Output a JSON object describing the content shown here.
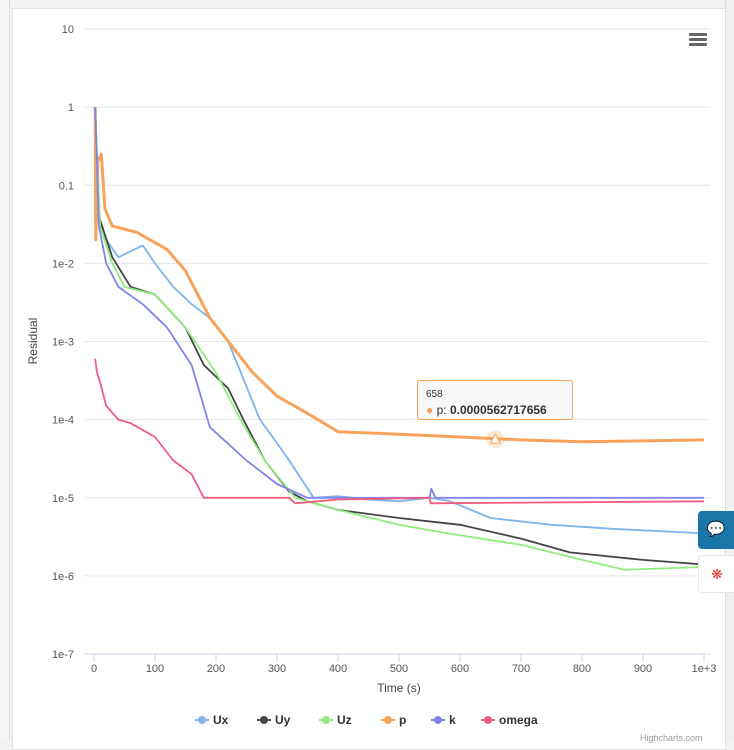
{
  "chart_data": {
    "type": "line",
    "xlabel": "Time (s)",
    "ylabel": "Residual",
    "xlim": [
      0,
      1000
    ],
    "ylim": [
      1e-07,
      10
    ],
    "yscale": "log",
    "x_ticks": [
      "0",
      "100",
      "200",
      "300",
      "400",
      "500",
      "600",
      "700",
      "800",
      "900",
      "1e+3"
    ],
    "y_ticks": [
      "10",
      "1",
      "0.1",
      "1e-2",
      "1e-3",
      "1e-4",
      "1e-5",
      "1e-6",
      "1e-7"
    ],
    "legend_placement": "bottom",
    "series": [
      {
        "name": "Ux",
        "color": "#7cb5ec",
        "marker": "circle",
        "points": [
          [
            2,
            1
          ],
          [
            5,
            0.04
          ],
          [
            20,
            0.02
          ],
          [
            40,
            0.012
          ],
          [
            80,
            0.017
          ],
          [
            100,
            0.01
          ],
          [
            130,
            0.005
          ],
          [
            160,
            0.003
          ],
          [
            190,
            0.002
          ],
          [
            220,
            0.001
          ],
          [
            272,
            0.0001
          ],
          [
            300,
            5e-05
          ],
          [
            320,
            3e-05
          ],
          [
            360,
            1e-05
          ],
          [
            400,
            1.05e-05
          ],
          [
            450,
            9.5e-06
          ],
          [
            500,
            9e-06
          ],
          [
            550,
            1e-05
          ],
          [
            580,
            9.2e-06
          ],
          [
            600,
            8e-06
          ],
          [
            650,
            5.5e-06
          ],
          [
            750,
            4.5e-06
          ],
          [
            850,
            4e-06
          ],
          [
            1000,
            3.5e-06
          ]
        ]
      },
      {
        "name": "Uy",
        "color": "#434348",
        "marker": "diamond",
        "points": [
          [
            2,
            1
          ],
          [
            8,
            0.04
          ],
          [
            30,
            0.012
          ],
          [
            60,
            0.005
          ],
          [
            100,
            0.004
          ],
          [
            150,
            0.0015
          ],
          [
            180,
            0.0005
          ],
          [
            220,
            0.00025
          ],
          [
            245,
            0.0001
          ],
          [
            280,
            3e-05
          ],
          [
            320,
            1.2e-05
          ],
          [
            350,
            9e-06
          ],
          [
            400,
            7e-06
          ],
          [
            500,
            5.5e-06
          ],
          [
            600,
            4.5e-06
          ],
          [
            700,
            3e-06
          ],
          [
            780,
            2e-06
          ],
          [
            900,
            1.6e-06
          ],
          [
            1000,
            1.4e-06
          ]
        ]
      },
      {
        "name": "Uz",
        "color": "#90ed7d",
        "marker": "square",
        "points": [
          [
            2,
            1
          ],
          [
            10,
            0.03
          ],
          [
            30,
            0.01
          ],
          [
            50,
            0.005
          ],
          [
            100,
            0.004
          ],
          [
            150,
            0.0015
          ],
          [
            200,
            0.0004
          ],
          [
            240,
            0.0001
          ],
          [
            280,
            3e-05
          ],
          [
            330,
            1e-05
          ],
          [
            400,
            7e-06
          ],
          [
            500,
            4.5e-06
          ],
          [
            580,
            3.5e-06
          ],
          [
            700,
            2.5e-06
          ],
          [
            800,
            1.6e-06
          ],
          [
            870,
            1.2e-06
          ],
          [
            1000,
            1.3e-06
          ]
        ]
      },
      {
        "name": "p",
        "color": "#f7a35c",
        "marker": "triangle",
        "points": [
          [
            2,
            1
          ],
          [
            3,
            0.02
          ],
          [
            6,
            0.2
          ],
          [
            12,
            0.25
          ],
          [
            18,
            0.05
          ],
          [
            30,
            0.03
          ],
          [
            70,
            0.025
          ],
          [
            120,
            0.015
          ],
          [
            150,
            0.008
          ],
          [
            190,
            0.002
          ],
          [
            230,
            0.0008
          ],
          [
            260,
            0.0004
          ],
          [
            300,
            0.0002
          ],
          [
            350,
            0.00012
          ],
          [
            400,
            7e-05
          ],
          [
            500,
            6.5e-05
          ],
          [
            600,
            6e-05
          ],
          [
            700,
            5.5e-05
          ],
          [
            800,
            5.2e-05
          ],
          [
            1000,
            5.5e-05
          ]
        ]
      },
      {
        "name": "k",
        "color": "#8085e9",
        "marker": "triangle-down",
        "points": [
          [
            2,
            1
          ],
          [
            8,
            0.03
          ],
          [
            20,
            0.01
          ],
          [
            40,
            0.005
          ],
          [
            80,
            0.003
          ],
          [
            120,
            0.0015
          ],
          [
            160,
            0.0005
          ],
          [
            190,
            8e-05
          ],
          [
            250,
            3e-05
          ],
          [
            300,
            1.5e-05
          ],
          [
            350,
            1e-05
          ],
          [
            550,
            1e-05
          ],
          [
            553,
            1.3e-05
          ],
          [
            560,
            1e-05
          ],
          [
            1000,
            1e-05
          ]
        ]
      },
      {
        "name": "omega",
        "color": "#f15c80",
        "marker": "circle",
        "points": [
          [
            2,
            0.0006
          ],
          [
            5,
            0.0004
          ],
          [
            10,
            0.0003
          ],
          [
            20,
            0.00015
          ],
          [
            40,
            0.0001
          ],
          [
            60,
            9e-05
          ],
          [
            100,
            6e-05
          ],
          [
            130,
            3e-05
          ],
          [
            160,
            2e-05
          ],
          [
            180,
            1e-05
          ],
          [
            320,
            1e-05
          ],
          [
            330,
            8.5e-06
          ],
          [
            400,
            9.5e-06
          ],
          [
            550,
            1e-05
          ],
          [
            552,
            8.5e-06
          ],
          [
            1000,
            9e-06
          ]
        ]
      }
    ],
    "tooltip": {
      "x": "658",
      "series": "p",
      "label": "p:",
      "value": "0.0000562717656"
    }
  },
  "credit": "Highcharts.com"
}
